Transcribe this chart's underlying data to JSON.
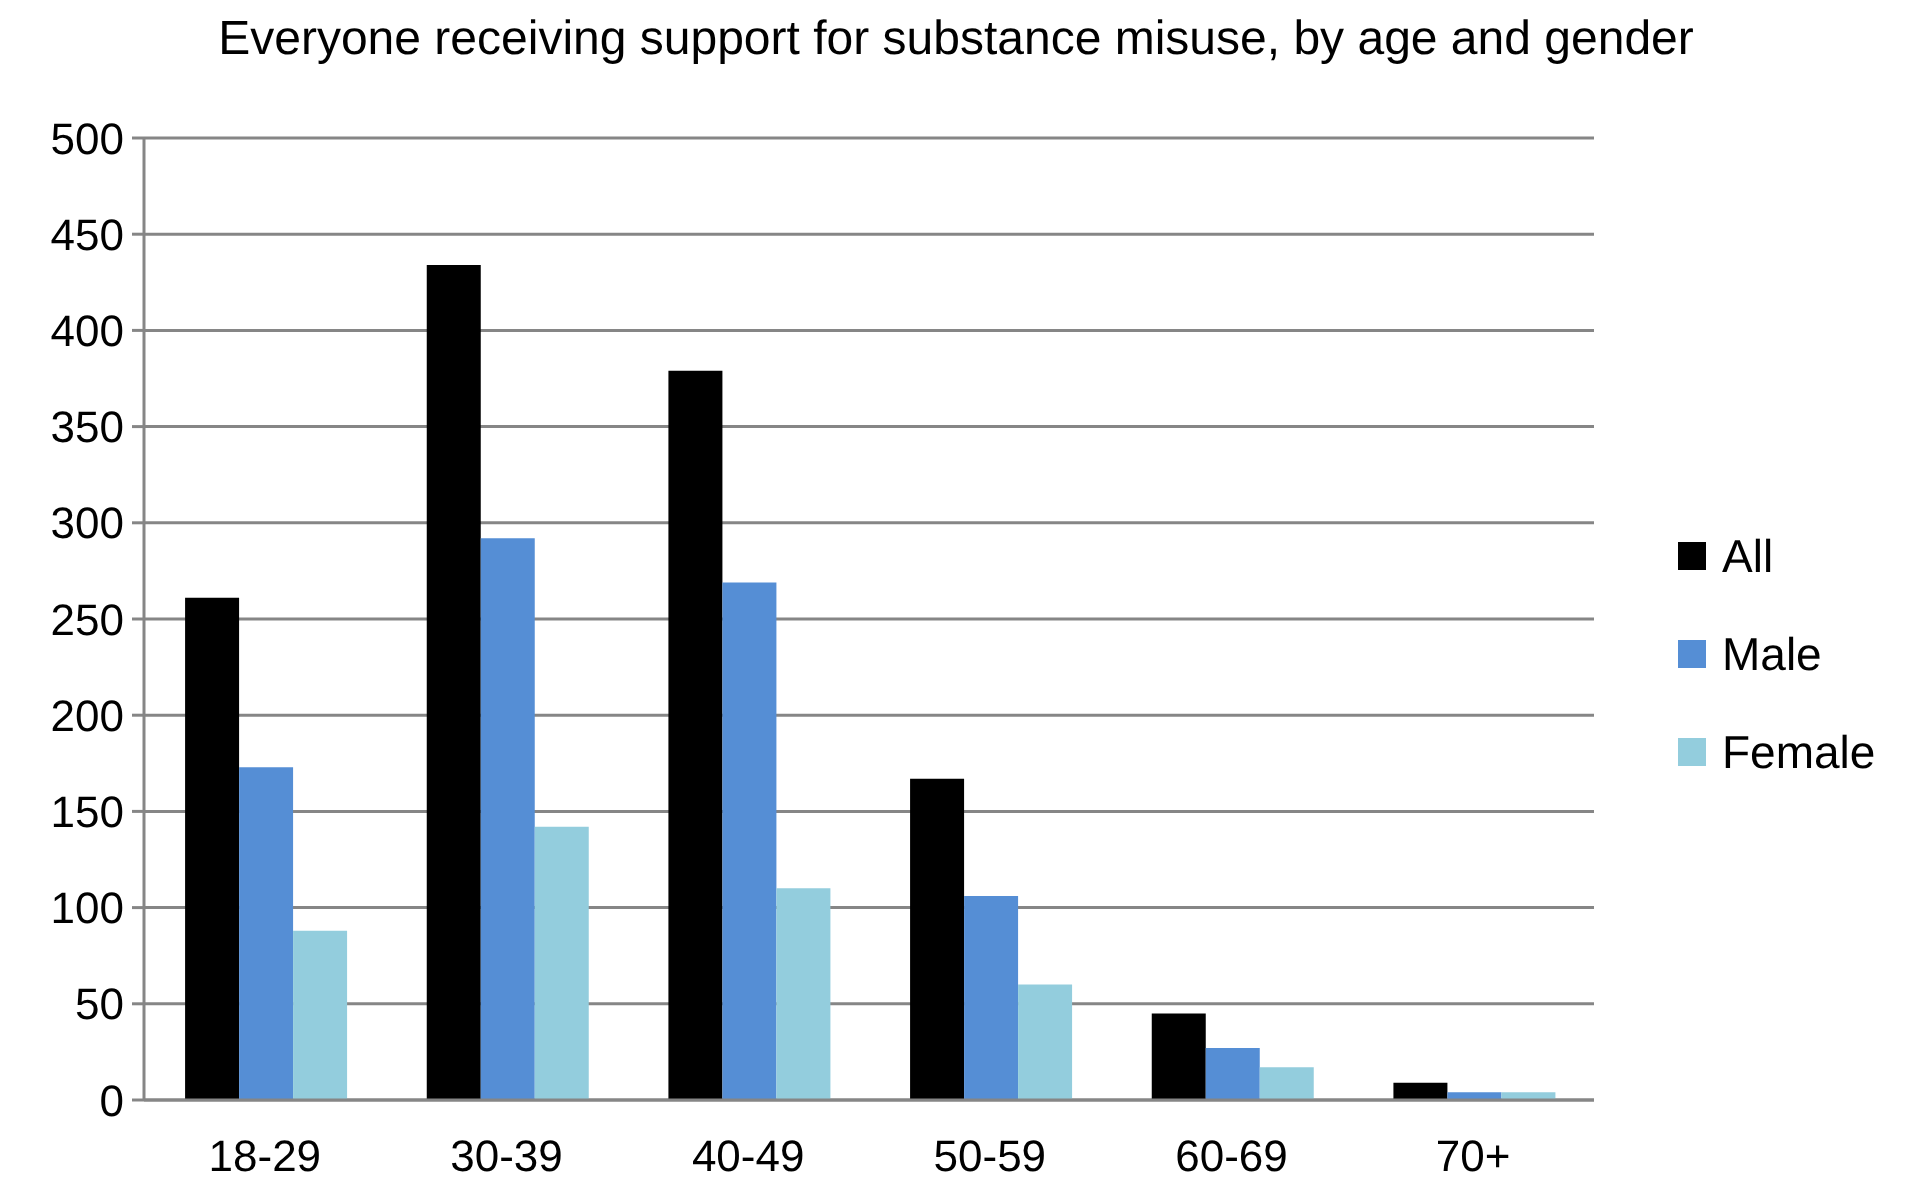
{
  "chart_data": {
    "type": "bar",
    "title": "Everyone receiving support for substance misuse, by age and gender",
    "categories": [
      "18-29",
      "30-39",
      "40-49",
      "50-59",
      "60-69",
      "70+"
    ],
    "series": [
      {
        "name": "All",
        "color": "#000000",
        "values": [
          261,
          434,
          379,
          167,
          45,
          9
        ]
      },
      {
        "name": "Male",
        "color": "#558ed5",
        "values": [
          173,
          292,
          269,
          106,
          27,
          4
        ]
      },
      {
        "name": "Female",
        "color": "#93cddd",
        "values": [
          88,
          142,
          110,
          60,
          17,
          4
        ]
      }
    ],
    "ylim": [
      0,
      500
    ],
    "yticks": [
      0,
      50,
      100,
      150,
      200,
      250,
      300,
      350,
      400,
      450,
      500
    ],
    "grid": "y",
    "legend": "right"
  }
}
